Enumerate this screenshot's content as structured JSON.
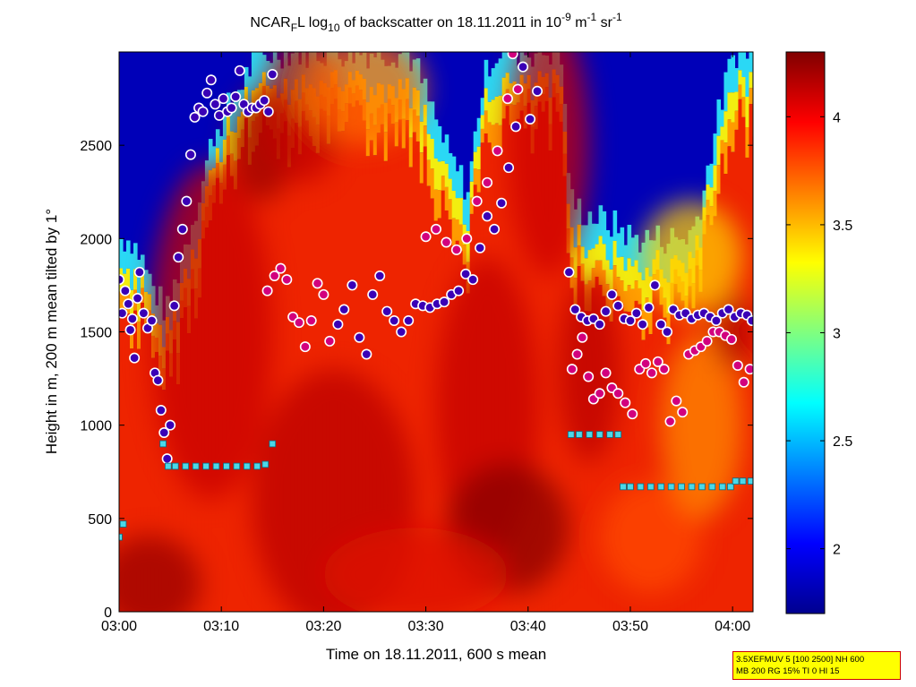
{
  "chart_data": {
    "type": "heatmap",
    "title": {
      "prefix": "NCAR",
      "sub1": "F",
      "mid1": "L log",
      "sub2": "10",
      "mid2": " of backscatter on 18.11.2011 in 10",
      "sup1": "-9",
      "mid3": " m",
      "sup2": "-1",
      "mid4": " sr",
      "sup3": "-1"
    },
    "xlabel": "Time on 18.11.2011, 600 s mean",
    "ylabel": "Height in m, 200 m mean tilted by 1°",
    "x_range_minutes": [
      0,
      62
    ],
    "y_range_m": [
      0,
      3000
    ],
    "x_ticks": [
      {
        "label": "03:00",
        "minute": 0
      },
      {
        "label": "03:10",
        "minute": 10
      },
      {
        "label": "03:20",
        "minute": 20
      },
      {
        "label": "03:30",
        "minute": 30
      },
      {
        "label": "03:40",
        "minute": 40
      },
      {
        "label": "03:50",
        "minute": 50
      },
      {
        "label": "04:00",
        "minute": 60
      }
    ],
    "y_ticks": [
      0,
      500,
      1000,
      1500,
      2000,
      2500
    ],
    "colorbar": {
      "range": [
        1.7,
        4.3
      ],
      "ticks": [
        2,
        2.5,
        3,
        3.5,
        4
      ],
      "colormap": "jet"
    },
    "signal_top_m": [
      [
        0,
        2000
      ],
      [
        1,
        2000
      ],
      [
        2,
        1900
      ],
      [
        3,
        1750
      ],
      [
        4,
        1650
      ],
      [
        4.5,
        1600
      ],
      [
        5,
        1700
      ],
      [
        6,
        1900
      ],
      [
        7,
        2100
      ],
      [
        8,
        2300
      ],
      [
        9,
        2550
      ],
      [
        10,
        2650
      ],
      [
        11,
        2750
      ],
      [
        12,
        2850
      ],
      [
        13,
        2950
      ],
      [
        15,
        3000
      ],
      [
        28,
        3000
      ],
      [
        29,
        2900
      ],
      [
        30,
        2750
      ],
      [
        31,
        2600
      ],
      [
        32,
        2450
      ],
      [
        33,
        2350
      ],
      [
        34,
        2250
      ],
      [
        35,
        2700
      ],
      [
        36,
        2950
      ],
      [
        37,
        3000
      ],
      [
        43,
        3000
      ],
      [
        44,
        2200
      ],
      [
        45,
        2150
      ],
      [
        47,
        2100
      ],
      [
        49,
        2050
      ],
      [
        50,
        2000
      ],
      [
        51,
        2000
      ],
      [
        53,
        2000
      ],
      [
        55,
        2000
      ],
      [
        56,
        2050
      ],
      [
        57,
        2250
      ],
      [
        58,
        2550
      ],
      [
        59,
        2800
      ],
      [
        60,
        3000
      ],
      [
        62,
        3000
      ]
    ],
    "cloud_base_m": [
      [
        0.0,
        1780
      ],
      [
        0.3,
        1600
      ],
      [
        0.6,
        1720
      ],
      [
        0.9,
        1650
      ],
      [
        1.1,
        1510
      ],
      [
        1.3,
        1570
      ],
      [
        1.5,
        1360
      ],
      [
        1.8,
        1680
      ],
      [
        2.0,
        1820
      ],
      [
        2.4,
        1600
      ],
      [
        2.8,
        1520
      ],
      [
        3.2,
        1560
      ],
      [
        3.5,
        1280
      ],
      [
        3.8,
        1240
      ],
      [
        4.1,
        1080
      ],
      [
        4.4,
        960
      ],
      [
        4.7,
        820
      ],
      [
        5.0,
        1000
      ],
      [
        5.4,
        1640
      ],
      [
        5.8,
        1900
      ],
      [
        6.2,
        2050
      ],
      [
        6.6,
        2200
      ],
      [
        7.0,
        2450
      ],
      [
        7.4,
        2650
      ],
      [
        7.8,
        2700
      ],
      [
        8.2,
        2680
      ],
      [
        8.6,
        2780
      ],
      [
        9.0,
        2850
      ],
      [
        9.4,
        2720
      ],
      [
        9.8,
        2660
      ],
      [
        10.2,
        2750
      ],
      [
        10.6,
        2680
      ],
      [
        11.0,
        2700
      ],
      [
        11.4,
        2760
      ],
      [
        11.8,
        2900
      ],
      [
        12.2,
        2720
      ],
      [
        12.6,
        2680
      ],
      [
        13.0,
        2700
      ],
      [
        13.4,
        2700
      ],
      [
        13.8,
        2720
      ],
      [
        14.2,
        2740
      ],
      [
        14.6,
        2680
      ],
      [
        15.0,
        2880
      ],
      [
        21.4,
        1540
      ],
      [
        22.0,
        1620
      ],
      [
        22.8,
        1750
      ],
      [
        23.5,
        1470
      ],
      [
        24.2,
        1380
      ],
      [
        24.8,
        1700
      ],
      [
        25.5,
        1800
      ],
      [
        26.2,
        1610
      ],
      [
        26.9,
        1560
      ],
      [
        27.6,
        1500
      ],
      [
        28.3,
        1560
      ],
      [
        29.0,
        1650
      ],
      [
        29.7,
        1640
      ],
      [
        30.4,
        1630
      ],
      [
        31.1,
        1650
      ],
      [
        31.8,
        1660
      ],
      [
        32.5,
        1700
      ],
      [
        33.2,
        1720
      ],
      [
        33.9,
        1810
      ],
      [
        34.6,
        1780
      ],
      [
        35.3,
        1950
      ],
      [
        36.0,
        2120
      ],
      [
        36.7,
        2050
      ],
      [
        37.4,
        2190
      ],
      [
        38.1,
        2380
      ],
      [
        38.8,
        2600
      ],
      [
        39.5,
        2920
      ],
      [
        40.2,
        2640
      ],
      [
        40.9,
        2790
      ],
      [
        44.0,
        1820
      ],
      [
        44.6,
        1620
      ],
      [
        45.2,
        1580
      ],
      [
        45.8,
        1560
      ],
      [
        46.4,
        1570
      ],
      [
        47.0,
        1540
      ],
      [
        47.6,
        1610
      ],
      [
        48.2,
        1700
      ],
      [
        48.8,
        1640
      ],
      [
        49.4,
        1570
      ],
      [
        50.0,
        1560
      ],
      [
        50.6,
        1600
      ],
      [
        51.2,
        1540
      ],
      [
        51.8,
        1630
      ],
      [
        52.4,
        1750
      ],
      [
        53.0,
        1540
      ],
      [
        53.6,
        1500
      ],
      [
        54.2,
        1620
      ],
      [
        54.8,
        1590
      ],
      [
        55.4,
        1600
      ],
      [
        56.0,
        1570
      ],
      [
        56.6,
        1590
      ],
      [
        57.2,
        1600
      ],
      [
        57.8,
        1580
      ],
      [
        58.4,
        1560
      ],
      [
        59.0,
        1600
      ],
      [
        59.6,
        1620
      ],
      [
        60.2,
        1580
      ],
      [
        60.8,
        1600
      ],
      [
        61.4,
        1590
      ],
      [
        61.9,
        1560
      ]
    ],
    "aux_points_m": [
      [
        14.5,
        1720
      ],
      [
        15.2,
        1800
      ],
      [
        15.8,
        1840
      ],
      [
        16.4,
        1780
      ],
      [
        17.0,
        1580
      ],
      [
        17.6,
        1550
      ],
      [
        18.2,
        1420
      ],
      [
        18.8,
        1560
      ],
      [
        19.4,
        1760
      ],
      [
        20.0,
        1700
      ],
      [
        20.6,
        1450
      ],
      [
        30.0,
        2010
      ],
      [
        31.0,
        2050
      ],
      [
        32.0,
        1980
      ],
      [
        33.0,
        1940
      ],
      [
        34.0,
        2000
      ],
      [
        35.0,
        2200
      ],
      [
        36.0,
        2300
      ],
      [
        37.0,
        2470
      ],
      [
        38.0,
        2750
      ],
      [
        38.5,
        2990
      ],
      [
        39.0,
        2800
      ],
      [
        44.3,
        1300
      ],
      [
        44.8,
        1380
      ],
      [
        45.3,
        1470
      ],
      [
        45.9,
        1260
      ],
      [
        46.4,
        1140
      ],
      [
        47.0,
        1170
      ],
      [
        47.6,
        1280
      ],
      [
        48.2,
        1200
      ],
      [
        48.8,
        1170
      ],
      [
        49.5,
        1120
      ],
      [
        50.2,
        1060
      ],
      [
        50.9,
        1300
      ],
      [
        51.5,
        1330
      ],
      [
        52.1,
        1280
      ],
      [
        52.7,
        1340
      ],
      [
        53.3,
        1300
      ],
      [
        53.9,
        1020
      ],
      [
        54.5,
        1130
      ],
      [
        55.1,
        1070
      ],
      [
        55.7,
        1380
      ],
      [
        56.3,
        1400
      ],
      [
        56.9,
        1420
      ],
      [
        57.5,
        1450
      ],
      [
        58.1,
        1500
      ],
      [
        58.7,
        1500
      ],
      [
        59.3,
        1480
      ],
      [
        59.9,
        1460
      ],
      [
        60.5,
        1320
      ],
      [
        61.1,
        1230
      ],
      [
        61.7,
        1300
      ]
    ],
    "mixing_layer_m": [
      [
        0.0,
        400
      ],
      [
        0.4,
        470
      ],
      [
        4.3,
        900
      ],
      [
        4.8,
        780
      ],
      [
        5.5,
        780
      ],
      [
        6.5,
        780
      ],
      [
        7.5,
        780
      ],
      [
        8.5,
        780
      ],
      [
        9.5,
        780
      ],
      [
        10.5,
        780
      ],
      [
        11.5,
        780
      ],
      [
        12.5,
        780
      ],
      [
        13.5,
        780
      ],
      [
        14.3,
        790
      ],
      [
        15.0,
        900
      ],
      [
        44.2,
        950
      ],
      [
        45.0,
        950
      ],
      [
        46.0,
        950
      ],
      [
        47.0,
        950
      ],
      [
        48.0,
        950
      ],
      [
        48.8,
        950
      ],
      [
        49.3,
        670
      ],
      [
        50.0,
        670
      ],
      [
        51.0,
        670
      ],
      [
        52.0,
        670
      ],
      [
        53.0,
        670
      ],
      [
        54.0,
        670
      ],
      [
        55.0,
        670
      ],
      [
        56.0,
        670
      ],
      [
        57.0,
        670
      ],
      [
        58.0,
        670
      ],
      [
        59.0,
        670
      ],
      [
        59.8,
        670
      ],
      [
        60.3,
        700
      ],
      [
        61.0,
        700
      ],
      [
        61.8,
        700
      ]
    ],
    "info_box": [
      "3.5XEFMUV 5 [100 2500] NH 600",
      "MB 200 RG 15% TI 0 HI 15"
    ]
  }
}
